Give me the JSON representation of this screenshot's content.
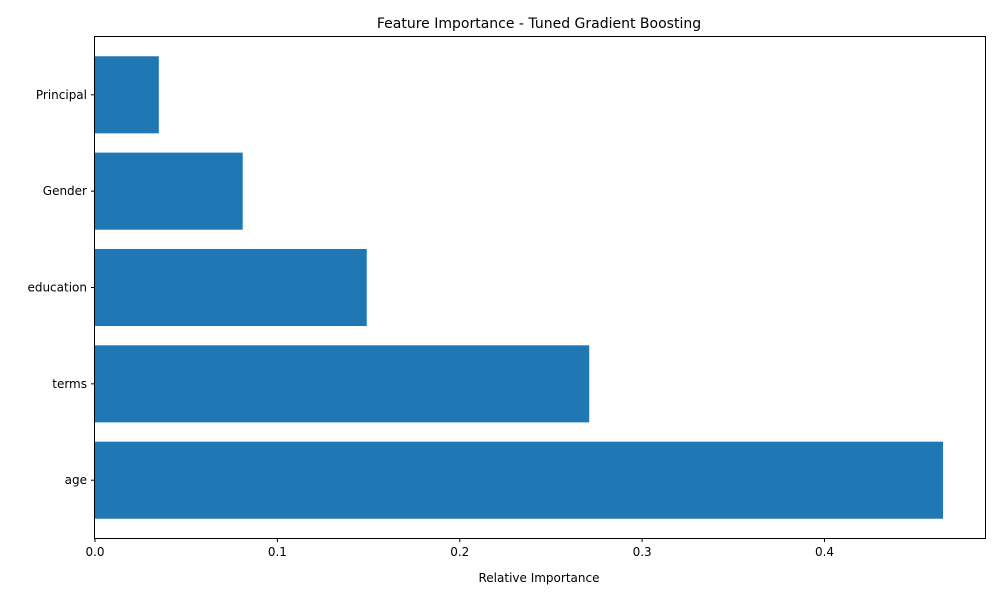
{
  "chart_data": {
    "type": "bar",
    "orientation": "horizontal",
    "title": "Feature Importance - Tuned Gradient Boosting",
    "xlabel": "Relative Importance",
    "ylabel": "",
    "categories": [
      "age",
      "terms",
      "education",
      "Gender",
      "Principal"
    ],
    "values": [
      0.465,
      0.271,
      0.149,
      0.081,
      0.035
    ],
    "xlim": [
      0,
      0.488
    ],
    "xticks": [
      0.0,
      0.1,
      0.2,
      0.3,
      0.4
    ],
    "xtick_labels": [
      "0.0",
      "0.1",
      "0.2",
      "0.3",
      "0.4"
    ],
    "bar_color": "#1f77b4",
    "grid": false,
    "legend": "none"
  }
}
